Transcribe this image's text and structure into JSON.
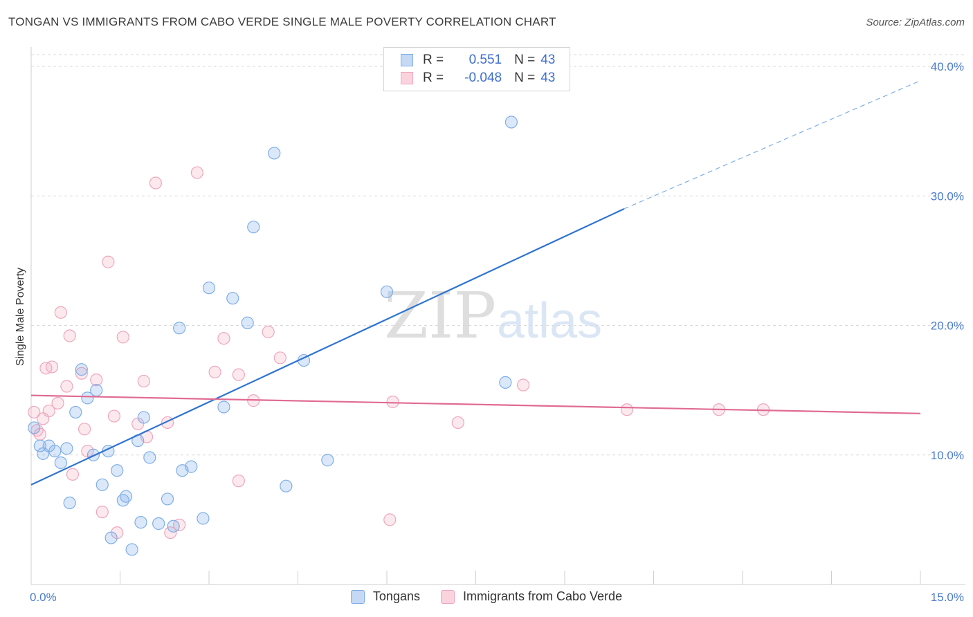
{
  "header": {
    "title": "TONGAN VS IMMIGRANTS FROM CABO VERDE SINGLE MALE POVERTY CORRELATION CHART",
    "source": "Source: ZipAtlas.com"
  },
  "watermark": {
    "zip": "ZIP",
    "atlas": "atlas"
  },
  "legend": {
    "rows": [
      {
        "r_label": "R =",
        "r_value": "0.551",
        "n_label": "N =",
        "n_value": "43",
        "color": "#7eaee8"
      },
      {
        "r_label": "R =",
        "r_value": "-0.048",
        "n_label": "N =",
        "n_value": "43",
        "color": "#f0a6bd"
      }
    ]
  },
  "bottom_legend": {
    "series1": "Tongans",
    "series2": "Immigrants from Cabo Verde"
  },
  "chart_data": {
    "type": "scatter",
    "ylabel": "Single Male Poverty",
    "xlim": [
      0,
      15
    ],
    "ylim": [
      0,
      40
    ],
    "x_ticks": [
      "0.0%",
      "15.0%"
    ],
    "y_ticks": [
      {
        "value": 10,
        "label": "10.0%"
      },
      {
        "value": 20,
        "label": "20.0%"
      },
      {
        "value": 30,
        "label": "30.0%"
      },
      {
        "value": 40,
        "label": "40.0%"
      }
    ],
    "grid": true,
    "series": [
      {
        "name": "Tongans",
        "color": "#7eaee8",
        "line_color": "#2f74d0",
        "trend": {
          "x0": 0,
          "y0": 7.7,
          "x1": 10.0,
          "y1": 29.0,
          "x_dash_end": 15.0,
          "y_dash_end": 38.9
        },
        "points": [
          [
            0.05,
            12.1
          ],
          [
            0.15,
            10.7
          ],
          [
            0.2,
            10.1
          ],
          [
            0.3,
            10.7
          ],
          [
            0.4,
            10.3
          ],
          [
            0.5,
            9.4
          ],
          [
            0.6,
            10.5
          ],
          [
            0.65,
            6.3
          ],
          [
            0.75,
            13.3
          ],
          [
            0.85,
            16.6
          ],
          [
            0.95,
            14.4
          ],
          [
            1.05,
            10.0
          ],
          [
            1.1,
            15.0
          ],
          [
            1.2,
            7.7
          ],
          [
            1.3,
            10.3
          ],
          [
            1.35,
            3.6
          ],
          [
            1.45,
            8.8
          ],
          [
            1.55,
            6.5
          ],
          [
            1.6,
            6.8
          ],
          [
            1.7,
            2.7
          ],
          [
            1.8,
            11.1
          ],
          [
            1.85,
            4.8
          ],
          [
            1.9,
            12.9
          ],
          [
            2.0,
            9.8
          ],
          [
            2.15,
            4.7
          ],
          [
            2.3,
            6.6
          ],
          [
            2.4,
            4.5
          ],
          [
            2.5,
            19.8
          ],
          [
            2.55,
            8.8
          ],
          [
            2.7,
            9.1
          ],
          [
            2.9,
            5.1
          ],
          [
            3.0,
            22.9
          ],
          [
            3.25,
            13.7
          ],
          [
            3.4,
            22.1
          ],
          [
            3.65,
            20.2
          ],
          [
            3.75,
            27.6
          ],
          [
            4.1,
            33.3
          ],
          [
            4.3,
            7.6
          ],
          [
            4.6,
            17.3
          ],
          [
            5.0,
            9.6
          ],
          [
            6.0,
            22.6
          ],
          [
            8.0,
            15.6
          ],
          [
            8.1,
            35.7
          ]
        ]
      },
      {
        "name": "Immigrants from Cabo Verde",
        "color": "#f0a6bd",
        "line_color": "#e06b94",
        "trend": {
          "x0": 0,
          "y0": 14.6,
          "x1": 15.0,
          "y1": 13.2
        },
        "points": [
          [
            0.05,
            13.3
          ],
          [
            0.1,
            11.9
          ],
          [
            0.15,
            11.6
          ],
          [
            0.2,
            12.8
          ],
          [
            0.25,
            16.7
          ],
          [
            0.3,
            13.4
          ],
          [
            0.35,
            16.8
          ],
          [
            0.45,
            14.0
          ],
          [
            0.5,
            21.0
          ],
          [
            0.6,
            15.3
          ],
          [
            0.65,
            19.2
          ],
          [
            0.7,
            8.5
          ],
          [
            0.85,
            16.3
          ],
          [
            0.9,
            12.0
          ],
          [
            0.95,
            10.3
          ],
          [
            1.1,
            15.8
          ],
          [
            1.2,
            5.6
          ],
          [
            1.3,
            24.9
          ],
          [
            1.4,
            13.0
          ],
          [
            1.45,
            4.0
          ],
          [
            1.55,
            19.1
          ],
          [
            1.8,
            12.4
          ],
          [
            1.9,
            15.7
          ],
          [
            1.95,
            11.4
          ],
          [
            2.1,
            31.0
          ],
          [
            2.3,
            12.5
          ],
          [
            2.35,
            4.0
          ],
          [
            2.5,
            4.6
          ],
          [
            2.8,
            31.8
          ],
          [
            3.1,
            16.4
          ],
          [
            3.25,
            19.0
          ],
          [
            3.5,
            8.0
          ],
          [
            3.5,
            16.2
          ],
          [
            3.75,
            14.2
          ],
          [
            4.0,
            19.5
          ],
          [
            4.2,
            17.5
          ],
          [
            6.05,
            5.0
          ],
          [
            6.1,
            14.1
          ],
          [
            7.2,
            12.5
          ],
          [
            8.3,
            15.4
          ],
          [
            10.05,
            13.5
          ],
          [
            11.6,
            13.5
          ],
          [
            12.35,
            13.5
          ]
        ]
      }
    ]
  }
}
